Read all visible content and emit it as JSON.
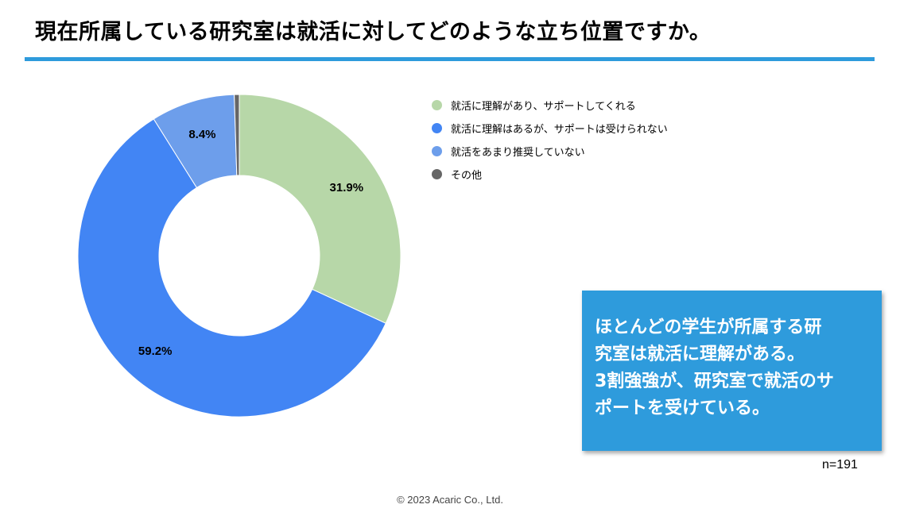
{
  "header": {
    "title": "現在所属している研究室は就活に対してどのような立ち位置ですか。"
  },
  "chart_data": {
    "type": "pie",
    "donut": true,
    "categories": [
      "就活に理解があり、サポートしてくれる",
      "就活に理解はあるが、サポートは受けられない",
      "就活をあまり推奨していない",
      "その他"
    ],
    "values": [
      31.9,
      59.2,
      8.4,
      0.5
    ],
    "labels": [
      "31.9%",
      "59.2%",
      "8.4%",
      ""
    ],
    "colors": [
      "#b7d7a8",
      "#4285f4",
      "#6d9eeb",
      "#666666"
    ],
    "legend_position": "right"
  },
  "callout": {
    "lines": [
      "ほとんどの学生が所属する研",
      "究室は就活に理解がある。",
      "3割強強が、研究室で就活のサ",
      "ポートを受けている。"
    ]
  },
  "sample": {
    "label": "n=191"
  },
  "footer": {
    "copyright": "© 2023 Acaric Co., Ltd."
  }
}
